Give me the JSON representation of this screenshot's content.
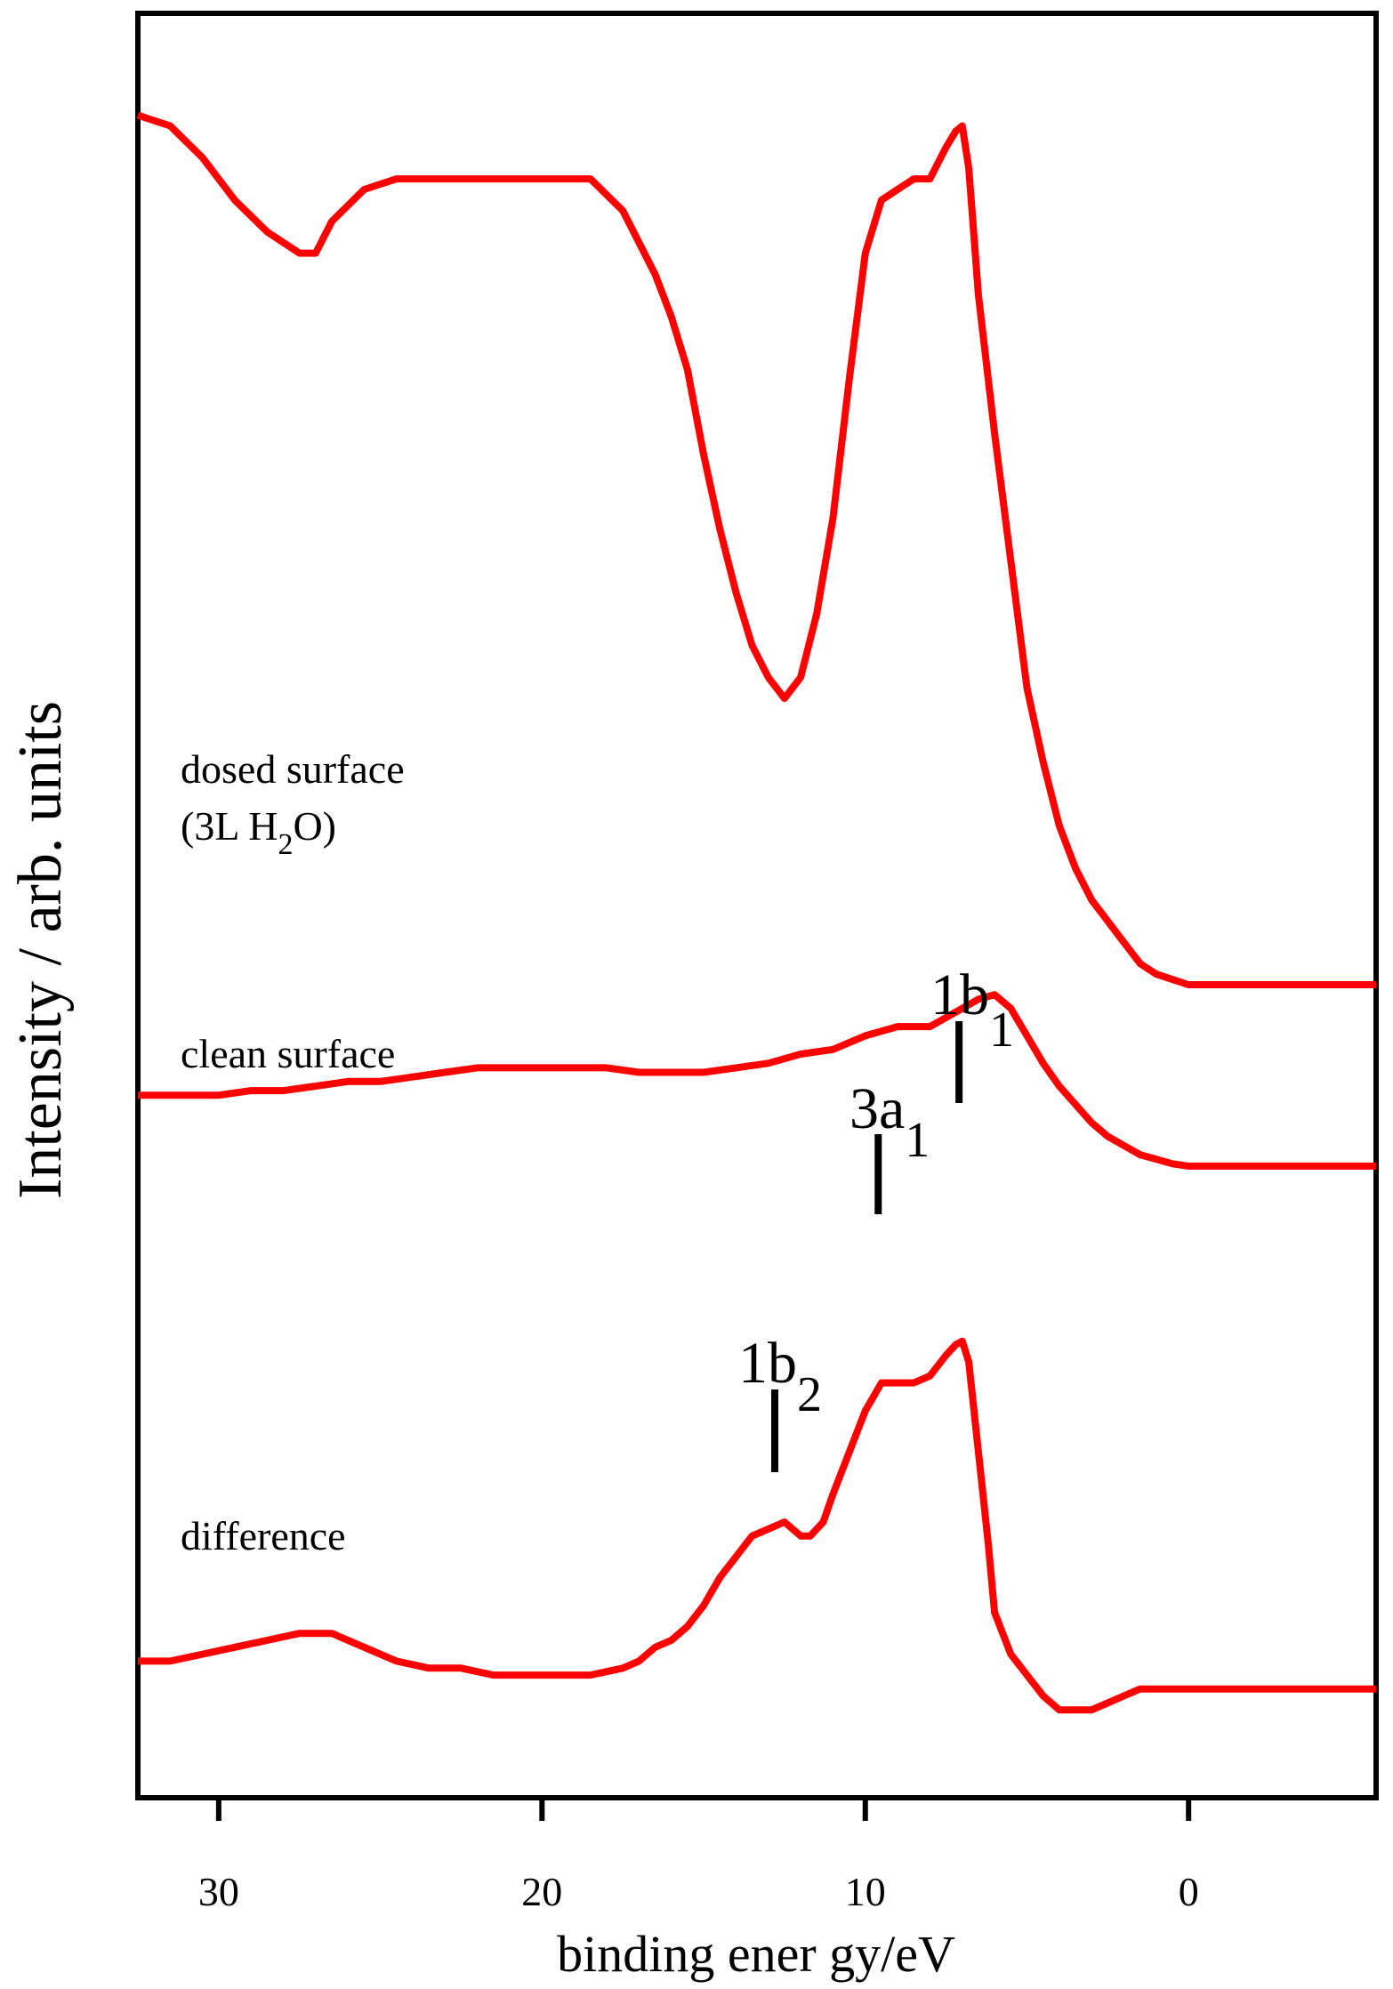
{
  "chart_data": {
    "type": "line",
    "title": "",
    "xlabel": "binding ener gy/eV",
    "ylabel": "Intensity / arb. units",
    "xlim": [
      32.5,
      -5.8
    ],
    "x_reversed": true,
    "yticks_shown": false,
    "xticks": [
      {
        "value": 30,
        "label": "30"
      },
      {
        "value": 20,
        "label": "20"
      },
      {
        "value": 10,
        "label": "10"
      },
      {
        "value": 0,
        "label": "0"
      }
    ],
    "line_color": "#ff0000",
    "series": [
      {
        "name": "dosed surface",
        "label_lines": [
          "dosed surface",
          "(3L H",
          "2",
          "O)"
        ],
        "x": [
          32.5,
          31.5,
          30.5,
          29.5,
          28.5,
          27.5,
          27.0,
          26.5,
          25.5,
          24.5,
          23.5,
          22.5,
          21.5,
          20.5,
          19.5,
          18.5,
          17.5,
          17.0,
          16.5,
          16.0,
          15.5,
          15.0,
          14.5,
          14.0,
          13.5,
          13.0,
          12.5,
          12.0,
          11.5,
          11.0,
          10.5,
          10.0,
          9.5,
          9.0,
          8.5,
          8.0,
          7.5,
          7.2,
          7.0,
          6.8,
          6.5,
          6.0,
          5.5,
          5.0,
          4.5,
          4.0,
          3.5,
          3.0,
          2.5,
          2.0,
          1.5,
          1.0,
          0.5,
          0.0,
          -5.8
        ],
        "y": [
          5,
          6,
          9,
          13,
          16,
          18,
          18,
          15,
          12,
          11,
          11,
          11,
          11,
          11,
          11,
          11,
          14,
          17,
          20,
          24,
          29,
          37,
          44,
          50,
          55,
          58,
          60,
          58,
          52,
          43,
          30,
          18,
          13,
          12,
          11,
          11,
          8,
          6.5,
          6,
          10,
          22,
          35,
          47,
          59,
          66,
          72,
          76,
          79,
          81,
          83,
          85,
          86,
          86.5,
          87,
          87
        ]
      },
      {
        "name": "clean surface",
        "label_lines": [
          "clean surface"
        ],
        "x": [
          32.5,
          31.0,
          30.0,
          29.0,
          28.0,
          27.0,
          26.0,
          25.0,
          24.0,
          23.0,
          22.0,
          21.0,
          20.0,
          19.0,
          18.0,
          17.0,
          16.0,
          15.0,
          14.0,
          13.0,
          12.0,
          11.0,
          10.0,
          9.0,
          8.5,
          8.0,
          7.5,
          7.0,
          6.5,
          6.0,
          5.5,
          5.0,
          4.5,
          4.0,
          3.5,
          3.0,
          2.5,
          2.0,
          1.5,
          1.0,
          0.5,
          0.0,
          -5.8
        ],
        "y": [
          66,
          66,
          66,
          65,
          65,
          64,
          63,
          63,
          62,
          61,
          60,
          60,
          60,
          60,
          60,
          61,
          61,
          61,
          60,
          59,
          57,
          56,
          53,
          51,
          51,
          51,
          49,
          47,
          45,
          44,
          47,
          53,
          59,
          64,
          68,
          72,
          75,
          77,
          79,
          80,
          81,
          81.5,
          81.5
        ]
      },
      {
        "name": "difference",
        "label_lines": [
          "difference"
        ],
        "x": [
          32.5,
          31.5,
          30.5,
          29.5,
          28.5,
          27.5,
          26.5,
          25.5,
          24.5,
          23.5,
          22.5,
          21.5,
          20.5,
          19.5,
          18.5,
          17.5,
          17.0,
          16.5,
          16.0,
          15.5,
          15.0,
          14.5,
          14.0,
          13.5,
          13.0,
          12.5,
          12.0,
          11.7,
          11.3,
          11.0,
          10.5,
          10.0,
          9.5,
          9.0,
          8.5,
          8.0,
          7.5,
          7.2,
          7.0,
          6.8,
          6.5,
          6.2,
          6.0,
          5.5,
          5.0,
          4.5,
          4.0,
          3.5,
          3.0,
          2.5,
          2.0,
          1.5,
          1.0,
          0.0,
          -5.8
        ],
        "y": [
          92,
          92,
          91,
          90,
          89,
          88,
          88,
          90,
          92,
          93,
          93,
          94,
          94,
          94,
          94,
          93,
          92,
          90,
          89,
          87,
          84,
          80,
          77,
          74,
          73,
          72,
          74,
          74,
          72,
          68,
          62,
          56,
          52,
          52,
          52,
          51,
          48,
          46.5,
          46,
          49,
          62,
          75,
          85,
          91,
          94,
          97,
          99,
          99,
          99,
          98,
          97,
          96,
          96,
          96,
          96
        ]
      }
    ],
    "annotations": [
      {
        "main": "1b",
        "sub": "1",
        "x": 7.1
      },
      {
        "main": "3a",
        "sub": "1",
        "x": 9.6
      },
      {
        "main": "1b",
        "sub": "2",
        "x": 12.8
      }
    ]
  }
}
